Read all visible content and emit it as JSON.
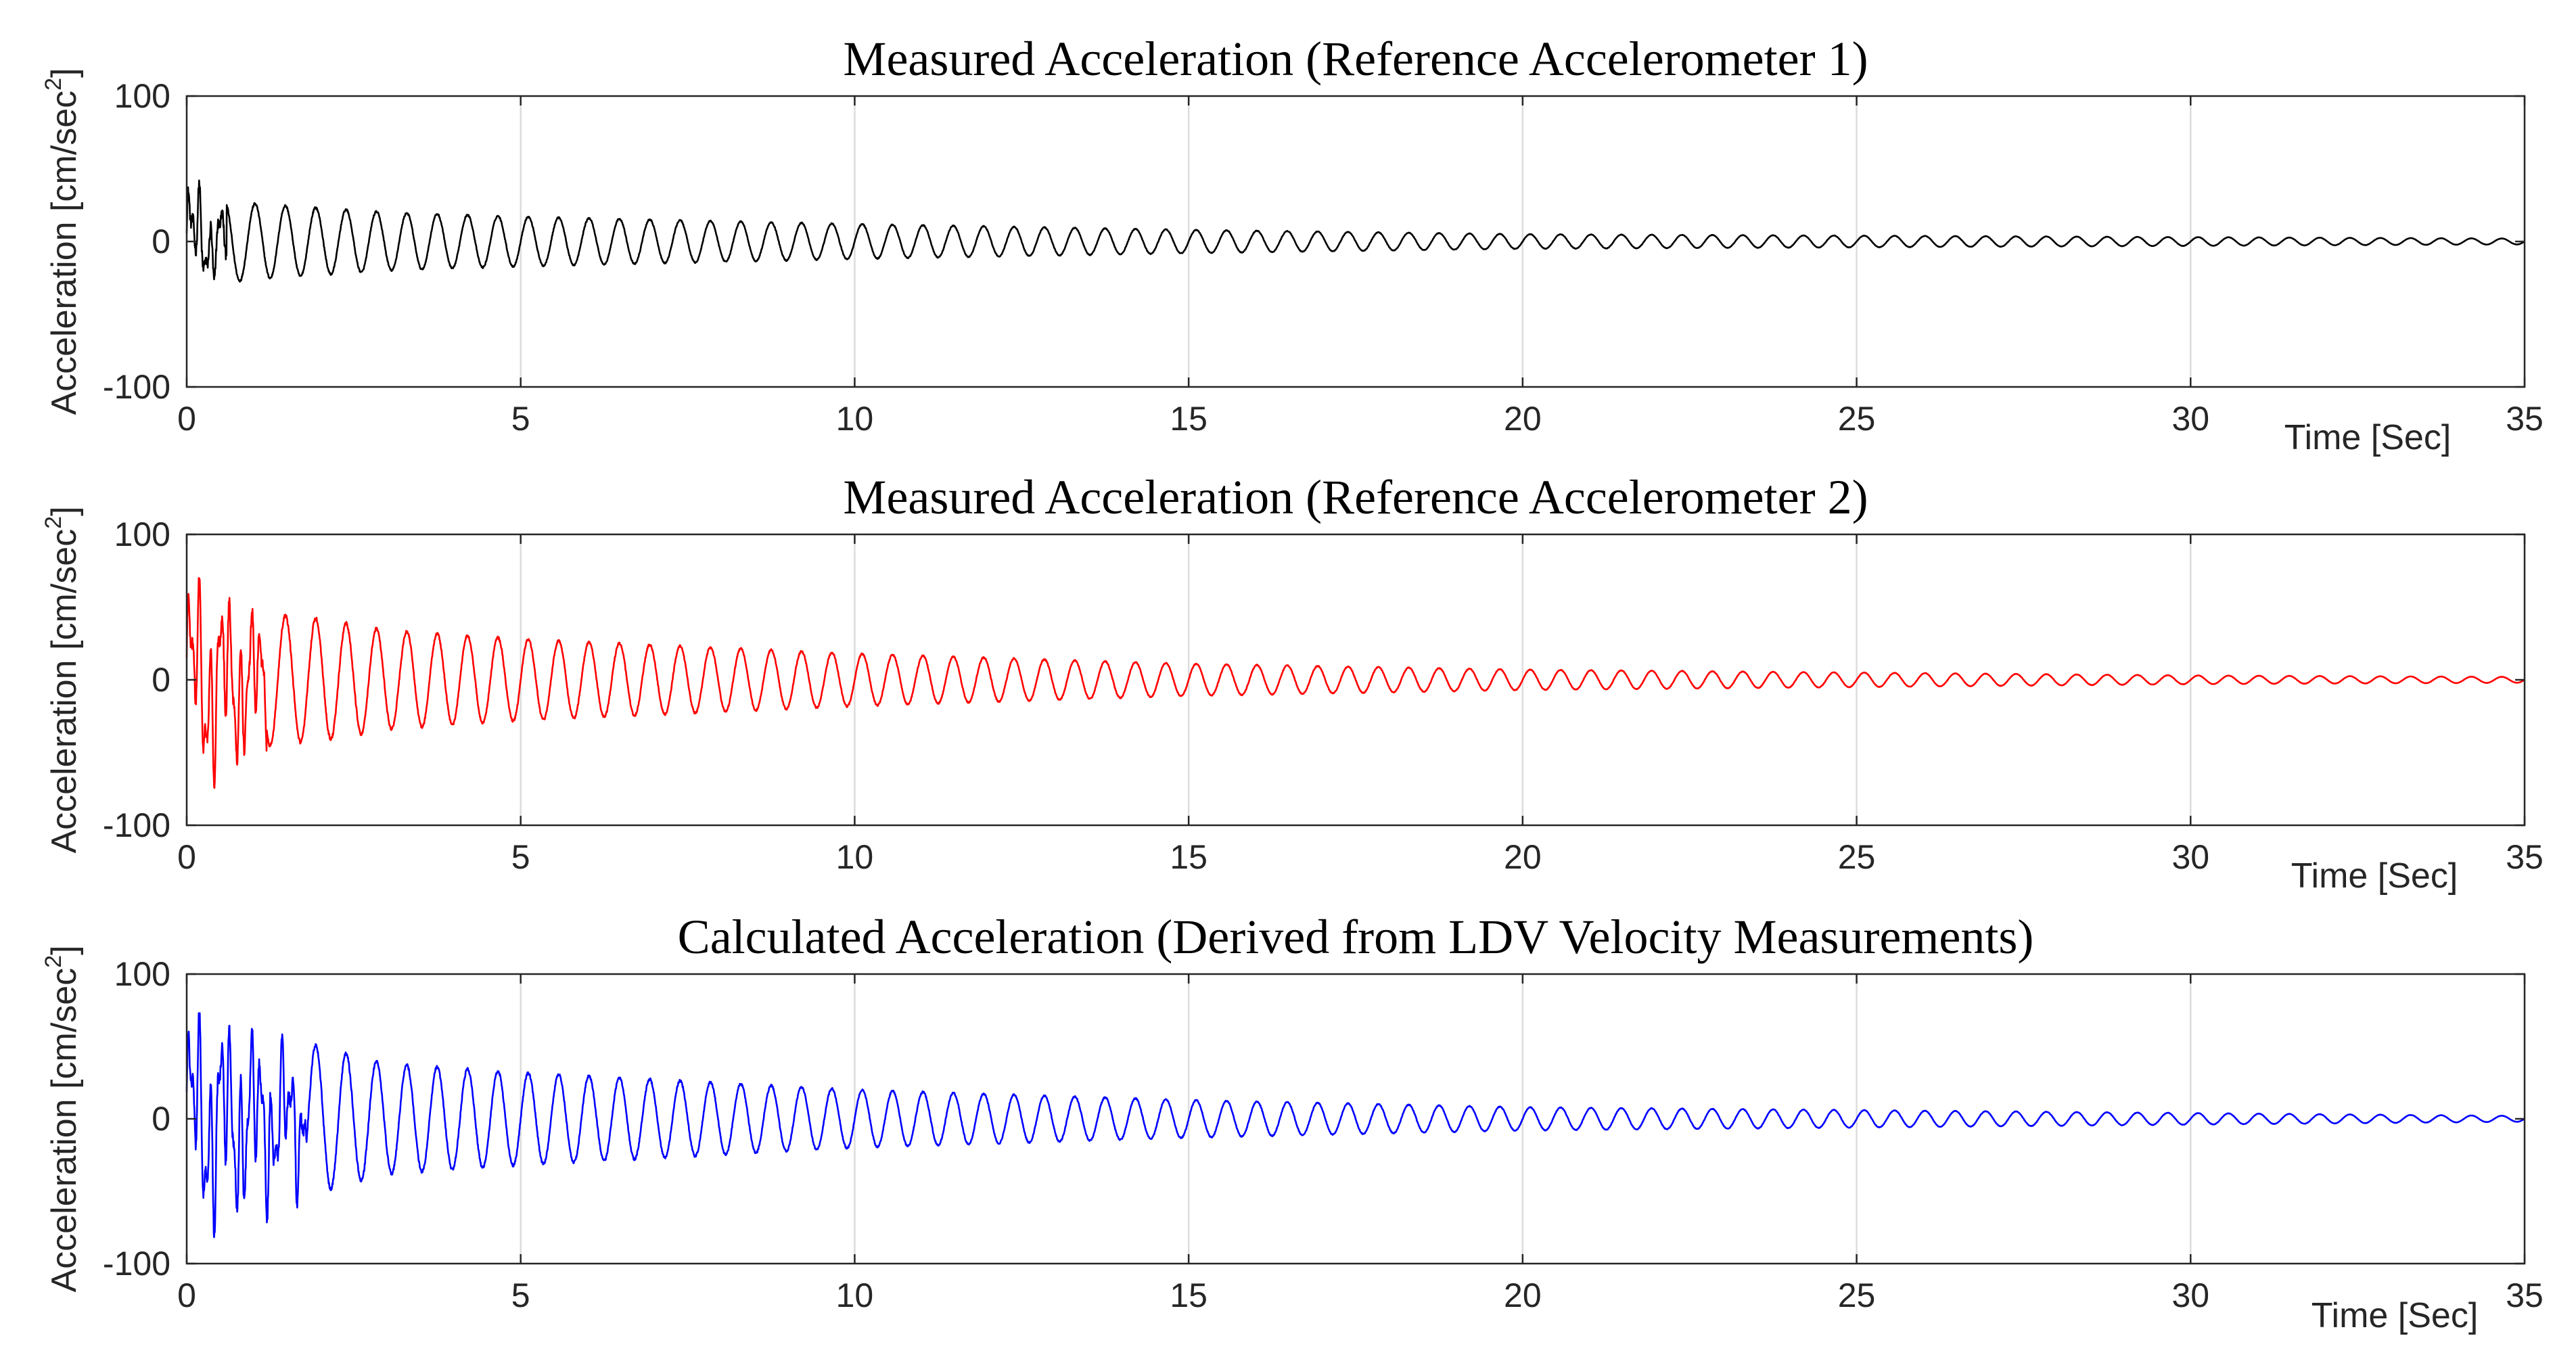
{
  "chart_data": [
    {
      "type": "line",
      "title": "Measured Acceleration (Reference Accelerometer 1)",
      "xlabel": "Time [Sec]",
      "ylabel_main": "Acceleration [cm/sec",
      "ylabel_sup": "2",
      "ylabel_close": "]",
      "xlim": [
        0,
        35
      ],
      "ylim": [
        -100,
        100
      ],
      "xticks": [
        0,
        5,
        10,
        15,
        20,
        25,
        30,
        35
      ],
      "yticks": [
        -100,
        0,
        100
      ],
      "grid": "vertical lines at x ticks",
      "series": [
        {
          "name": "Reference Accelerometer 1",
          "color": "#000000",
          "dominant_frequency_hz": 2.2,
          "transient_end_s": 0.6,
          "transient_peak_max": 42,
          "transient_peak_min": -35,
          "peak_amplitude_at_t": [
            [
              0.6,
              28
            ],
            [
              1.0,
              26
            ],
            [
              3.0,
              20
            ],
            [
              5.0,
              17
            ],
            [
              10.0,
              12
            ],
            [
              15.0,
              8
            ],
            [
              20.0,
              5
            ],
            [
              25.0,
              4
            ],
            [
              30.0,
              3
            ],
            [
              35.0,
              2
            ]
          ]
        }
      ]
    },
    {
      "type": "line",
      "title": "Measured Acceleration (Reference Accelerometer 2)",
      "xlabel": "Time [Sec]",
      "ylabel_main": "Acceleration [cm/sec",
      "ylabel_sup": "2",
      "ylabel_close": "]",
      "xlim": [
        0,
        35
      ],
      "ylim": [
        -100,
        100
      ],
      "xticks": [
        0,
        5,
        10,
        15,
        20,
        25,
        30,
        35
      ],
      "yticks": [
        -100,
        0,
        100
      ],
      "grid": "vertical lines at x ticks",
      "series": [
        {
          "name": "Reference Accelerometer 2",
          "color": "#ff0000",
          "dominant_frequency_hz": 2.2,
          "transient_end_s": 1.2,
          "transient_peak_max": 70,
          "transient_peak_min": -80,
          "peak_amplitude_at_t": [
            [
              0.6,
              42
            ],
            [
              1.0,
              46
            ],
            [
              2.0,
              42
            ],
            [
              3.0,
              34
            ],
            [
              5.0,
              28
            ],
            [
              10.0,
              18
            ],
            [
              15.0,
              11
            ],
            [
              20.0,
              7
            ],
            [
              25.0,
              5
            ],
            [
              30.0,
              3
            ],
            [
              35.0,
              2
            ]
          ]
        }
      ]
    },
    {
      "type": "line",
      "title": "Calculated Acceleration (Derived from LDV Velocity Measurements)",
      "xlabel": "Time [Sec]",
      "ylabel_main": "Acceleration [cm/sec",
      "ylabel_sup": "2",
      "ylabel_close": "]",
      "xlim": [
        0,
        35
      ],
      "ylim": [
        -100,
        100
      ],
      "xticks": [
        0,
        5,
        10,
        15,
        20,
        25,
        30,
        35
      ],
      "yticks": [
        -100,
        0,
        100
      ],
      "grid": "vertical lines at x ticks",
      "series": [
        {
          "name": "LDV derived acceleration",
          "color": "#0000ff",
          "dominant_frequency_hz": 2.2,
          "transient_end_s": 1.8,
          "transient_peak_max": 73,
          "transient_peak_min": -83,
          "peak_amplitude_at_t": [
            [
              0.6,
              55
            ],
            [
              1.0,
              58
            ],
            [
              2.0,
              50
            ],
            [
              3.0,
              38
            ],
            [
              5.0,
              32
            ],
            [
              10.0,
              20
            ],
            [
              15.0,
              13
            ],
            [
              20.0,
              8
            ],
            [
              25.0,
              6
            ],
            [
              30.0,
              4
            ],
            [
              35.0,
              2
            ]
          ]
        }
      ]
    }
  ]
}
